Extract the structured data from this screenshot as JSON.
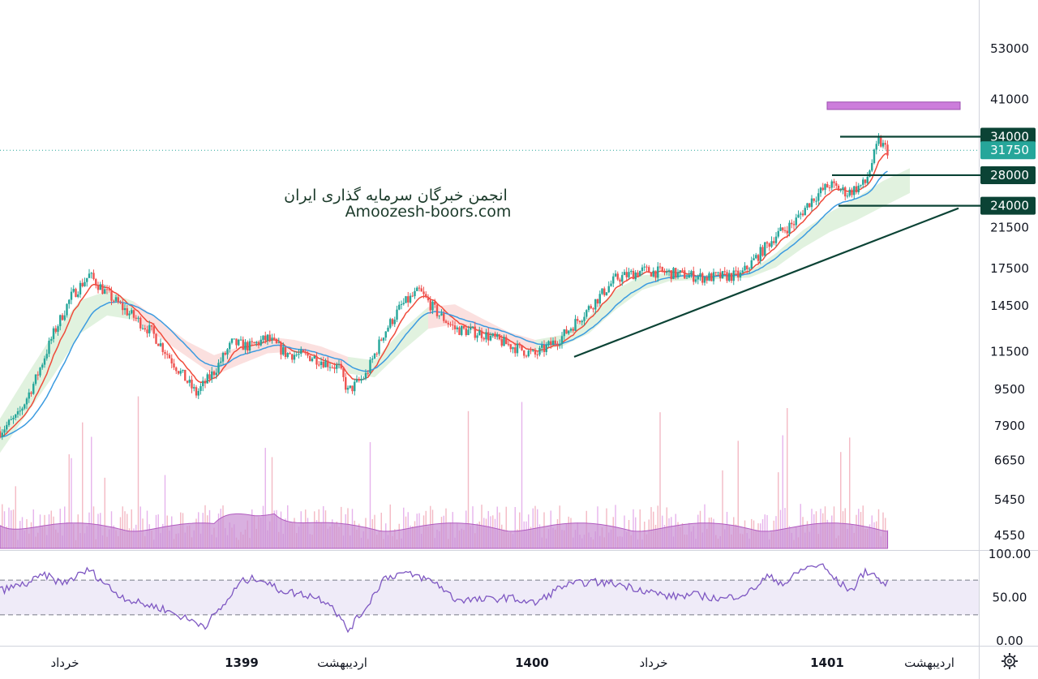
{
  "chart_data": {
    "type": "candlestick",
    "watermark": {
      "line1": "انجمن خبرگان سرمایه گذاری ایران",
      "line2": "Amoozesh-boors.com"
    },
    "price_axis": {
      "scale": "log",
      "ticks": [
        53000,
        41000,
        34000,
        28000,
        24000,
        21500,
        17500,
        14500,
        11500,
        9500,
        7900,
        6650,
        5450,
        4550
      ],
      "tick_labels": [
        "53000",
        "41000",
        "34000",
        "28000",
        "24000",
        "21500",
        "17500",
        "14500",
        "11500",
        "9500",
        "7900",
        "6650",
        "5450",
        "4550"
      ]
    },
    "levels": [
      {
        "value": 34000,
        "label": "34000",
        "color": "#0b4335"
      },
      {
        "value": 28000,
        "label": "28000",
        "color": "#0b4335"
      },
      {
        "value": 24000,
        "label": "24000",
        "color": "#0b4335"
      }
    ],
    "current_price": {
      "value": 31750,
      "label": "31750",
      "color": "#26a69a"
    },
    "target_zone": {
      "low": 39000,
      "high": 40500,
      "color": "#cc7ddb"
    },
    "trendline": {
      "from": 11200,
      "to": 23700,
      "color": "#0b4335"
    },
    "time_labels": [
      {
        "text": "خرداد",
        "bold": false
      },
      {
        "text": "1399",
        "bold": true
      },
      {
        "text": "اردیبهشت",
        "bold": false
      },
      {
        "text": "1400",
        "bold": true
      },
      {
        "text": "خرداد",
        "bold": false
      },
      {
        "text": "1401",
        "bold": true
      },
      {
        "text": "اردیبهشت",
        "bold": false
      }
    ],
    "price_path": [
      [
        0,
        7700
      ],
      [
        4,
        8300
      ],
      [
        8,
        10000
      ],
      [
        12,
        12600
      ],
      [
        16,
        15200
      ],
      [
        20,
        16900
      ],
      [
        24,
        15400
      ],
      [
        28,
        14200
      ],
      [
        34,
        12700
      ],
      [
        40,
        10500
      ],
      [
        44,
        9300
      ],
      [
        48,
        10400
      ],
      [
        52,
        12000
      ],
      [
        56,
        11800
      ],
      [
        60,
        12300
      ],
      [
        64,
        11400
      ],
      [
        70,
        11200
      ],
      [
        76,
        10600
      ],
      [
        78,
        9400
      ],
      [
        82,
        10200
      ],
      [
        86,
        12600
      ],
      [
        90,
        14500
      ],
      [
        94,
        15600
      ],
      [
        98,
        14000
      ],
      [
        102,
        12900
      ],
      [
        108,
        12600
      ],
      [
        114,
        11900
      ],
      [
        120,
        11300
      ],
      [
        126,
        12400
      ],
      [
        132,
        14300
      ],
      [
        138,
        16600
      ],
      [
        144,
        17300
      ],
      [
        150,
        17100
      ],
      [
        158,
        16700
      ],
      [
        166,
        16900
      ],
      [
        170,
        18700
      ],
      [
        174,
        20700
      ],
      [
        178,
        22000
      ],
      [
        182,
        24800
      ],
      [
        186,
        26700
      ],
      [
        190,
        25600
      ],
      [
        194,
        26900
      ],
      [
        197,
        33200
      ],
      [
        199,
        31750
      ]
    ],
    "ichimoku_cloud": [
      [
        0,
        6900,
        8200
      ],
      [
        6,
        8400,
        10200
      ],
      [
        12,
        10200,
        12600
      ],
      [
        18,
        12600,
        14900
      ],
      [
        24,
        13800,
        15600
      ],
      [
        30,
        13500,
        14800
      ],
      [
        36,
        12300,
        13400
      ],
      [
        42,
        11200,
        12100
      ],
      [
        48,
        10200,
        11300
      ],
      [
        54,
        10800,
        11800
      ],
      [
        60,
        11400,
        12400
      ],
      [
        66,
        11500,
        12200
      ],
      [
        72,
        11200,
        11800
      ],
      [
        78,
        10300,
        11200
      ],
      [
        84,
        10100,
        11000
      ],
      [
        90,
        11500,
        12800
      ],
      [
        96,
        12900,
        14400
      ],
      [
        102,
        13200,
        14600
      ],
      [
        108,
        12600,
        13600
      ],
      [
        114,
        11900,
        12700
      ],
      [
        120,
        11600,
        12200
      ],
      [
        126,
        11800,
        12500
      ],
      [
        132,
        12600,
        13700
      ],
      [
        138,
        14200,
        15700
      ],
      [
        144,
        15700,
        16900
      ],
      [
        150,
        16400,
        17100
      ],
      [
        156,
        16500,
        16900
      ],
      [
        162,
        16600,
        17000
      ],
      [
        168,
        16700,
        17200
      ],
      [
        174,
        17600,
        18900
      ],
      [
        180,
        19400,
        21200
      ],
      [
        186,
        21000,
        23200
      ],
      [
        192,
        22300,
        25000
      ],
      [
        198,
        23900,
        27200
      ],
      [
        204,
        25600,
        29000
      ]
    ],
    "rsi": {
      "ticks": [
        100,
        50,
        0
      ],
      "tick_labels": [
        "100.00",
        "50.00",
        "0.00"
      ],
      "overbought": 70,
      "oversold": 30,
      "path": [
        [
          0,
          58
        ],
        [
          6,
          66
        ],
        [
          10,
          76
        ],
        [
          14,
          66
        ],
        [
          20,
          82
        ],
        [
          26,
          55
        ],
        [
          30,
          45
        ],
        [
          36,
          38
        ],
        [
          42,
          25
        ],
        [
          46,
          18
        ],
        [
          50,
          40
        ],
        [
          54,
          68
        ],
        [
          58,
          73
        ],
        [
          62,
          60
        ],
        [
          66,
          55
        ],
        [
          70,
          52
        ],
        [
          74,
          44
        ],
        [
          78,
          12
        ],
        [
          82,
          38
        ],
        [
          86,
          72
        ],
        [
          90,
          78
        ],
        [
          94,
          74
        ],
        [
          98,
          66
        ],
        [
          102,
          48
        ],
        [
          108,
          47
        ],
        [
          114,
          50
        ],
        [
          120,
          43
        ],
        [
          126,
          63
        ],
        [
          132,
          68
        ],
        [
          138,
          66
        ],
        [
          144,
          59
        ],
        [
          150,
          51
        ],
        [
          156,
          53
        ],
        [
          162,
          48
        ],
        [
          168,
          56
        ],
        [
          172,
          74
        ],
        [
          176,
          66
        ],
        [
          180,
          83
        ],
        [
          184,
          88
        ],
        [
          188,
          67
        ],
        [
          191,
          58
        ],
        [
          194,
          81
        ],
        [
          196,
          76
        ],
        [
          198,
          66
        ]
      ]
    }
  }
}
